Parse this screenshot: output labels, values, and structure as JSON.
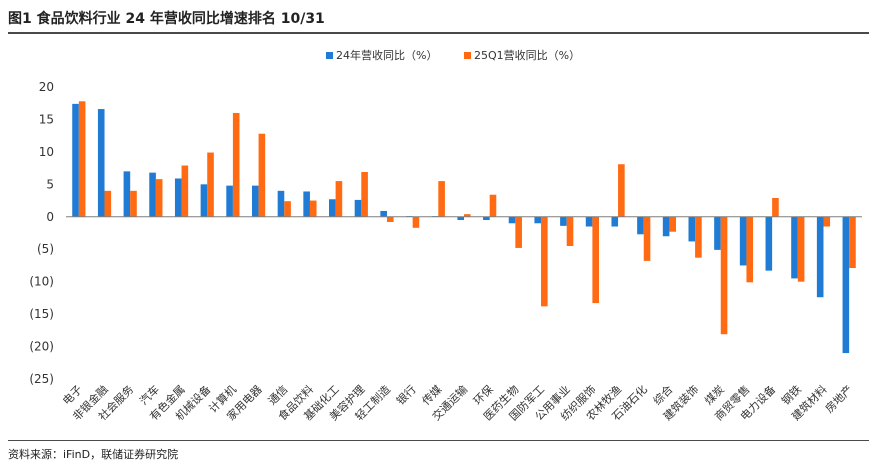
{
  "header": {
    "title": "图1  食品饮料行业 24 年营收同比增速排名 10/31"
  },
  "footer": {
    "source": "资料来源：iFinD，联储证券研究院"
  },
  "colors": {
    "series_a": "#1f7bd3",
    "series_b": "#ff6a12"
  },
  "chart_data": {
    "type": "bar",
    "title": "",
    "xlabel": "",
    "ylabel": "",
    "ylim": [
      -25,
      20
    ],
    "y_ticks": [
      20,
      15,
      10,
      5,
      0,
      -5,
      -10,
      -15,
      -20,
      -25
    ],
    "y_tick_labels": [
      "20",
      "15",
      "10",
      "5",
      "0",
      "(5)",
      "(10)",
      "(15)",
      "(20)",
      "(25)"
    ],
    "legend": "top-center",
    "grid": false,
    "categories": [
      "电子",
      "非银金融",
      "社会服务",
      "汽车",
      "有色金属",
      "机械设备",
      "计算机",
      "家用电器",
      "通信",
      "食品饮料",
      "基础化工",
      "美容护理",
      "轻工制造",
      "银行",
      "传媒",
      "交通运输",
      "环保",
      "医药生物",
      "国防军工",
      "公用事业",
      "纺织服饰",
      "农林牧渔",
      "石油石化",
      "综合",
      "建筑装饰",
      "煤炭",
      "商贸零售",
      "电力设备",
      "钢铁",
      "建筑材料",
      "房地产"
    ],
    "series": [
      {
        "name": "24年营收同比（%）",
        "values": [
          17.4,
          16.6,
          7.0,
          6.8,
          5.9,
          5.0,
          4.8,
          4.8,
          4.0,
          3.9,
          2.7,
          2.6,
          0.9,
          0.1,
          0.1,
          -0.5,
          -0.5,
          -1.0,
          -1.0,
          -1.4,
          -1.5,
          -1.5,
          -2.7,
          -3.0,
          -3.8,
          -5.1,
          -7.5,
          -8.3,
          -9.5,
          -12.4,
          -21.0
        ]
      },
      {
        "name": "25Q1营收同比（%）",
        "values": [
          17.8,
          4.0,
          4.0,
          5.8,
          7.9,
          9.9,
          16.0,
          12.8,
          2.4,
          2.5,
          5.5,
          6.9,
          -0.8,
          -1.7,
          5.5,
          0.4,
          3.4,
          -4.8,
          -13.8,
          -4.5,
          -13.3,
          8.1,
          -6.8,
          -2.3,
          -6.3,
          -18.1,
          -10.1,
          2.9,
          -10.0,
          -1.5,
          -7.9
        ]
      }
    ]
  }
}
